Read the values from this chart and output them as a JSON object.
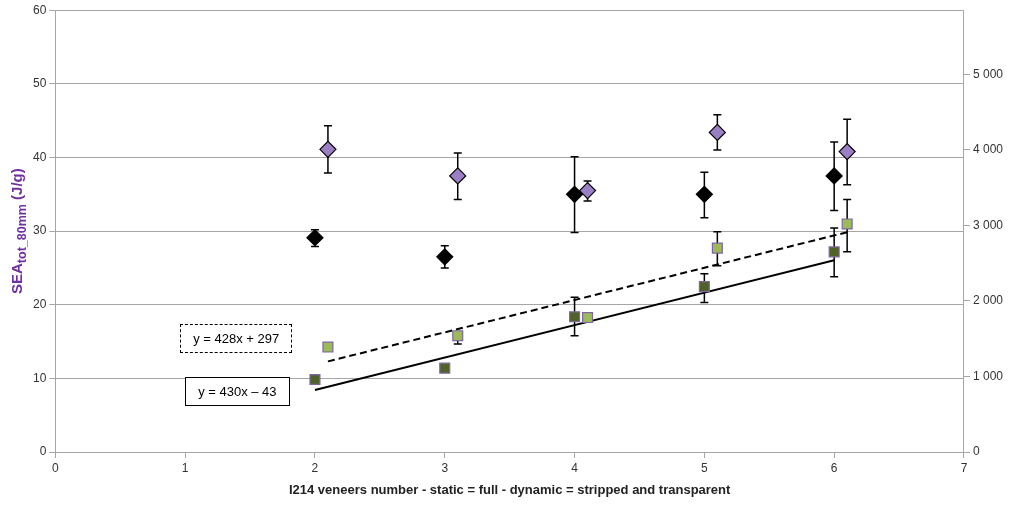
{
  "chart_data": {
    "type": "scatter",
    "xlabel": "I214 veneers number - static = full - dynamic = stripped and transparent",
    "ylabel": "SEA$_{tot_80mm}$ (J/g)",
    "xlim": [
      0,
      7
    ],
    "xticks": [
      0,
      1,
      2,
      3,
      4,
      5,
      6,
      7
    ],
    "ylim": [
      0,
      60
    ],
    "yticks": [
      0,
      10,
      20,
      30,
      40,
      50,
      60
    ],
    "y2lim": [
      0,
      5850
    ],
    "y2ticks": [
      0,
      {
        "value": 1000,
        "label": "1 000"
      },
      {
        "value": 2000,
        "label": "2 000"
      },
      {
        "value": 3000,
        "label": "3 000"
      },
      {
        "value": 4000,
        "label": "4 000"
      },
      {
        "value": 5000,
        "label": "5 000"
      }
    ],
    "grid": "y",
    "legend": false,
    "annotations": [
      "y = 428x + 297",
      "y = 430x – 43"
    ],
    "series": [
      {
        "type": "scatter",
        "marker": "diamond",
        "color": "#000000",
        "x": [
          2,
          3,
          4,
          5,
          6
        ],
        "values": [
          29.1,
          26.5,
          35,
          35,
          37.5
        ],
        "errors": [
          [
            27.9,
            30.2
          ],
          [
            25,
            28
          ],
          [
            29.8,
            40.1
          ],
          [
            31.8,
            38
          ],
          [
            32.8,
            42.1
          ]
        ]
      },
      {
        "type": "scatter",
        "marker": "diamond",
        "color": "#9b7fc4",
        "x": [
          2.1,
          3.1,
          4.1,
          5.1,
          6.1
        ],
        "values": [
          41.1,
          37.5,
          35.5,
          43.4,
          40.8
        ],
        "errors": [
          [
            37.9,
            44.3
          ],
          [
            34.3,
            40.6
          ],
          [
            34.1,
            36.8
          ],
          [
            41,
            45.8
          ],
          [
            36.3,
            45.2
          ]
        ]
      },
      {
        "type": "scatter",
        "marker": "square",
        "axis": "y2",
        "color": "#4f6228",
        "x": [
          2,
          3,
          4,
          5,
          6
        ],
        "values": [
          960,
          1110,
          1790,
          2190,
          2650
        ],
        "errors": [
          null,
          null,
          [
            1540,
            2050
          ],
          [
            1980,
            2360
          ],
          [
            2320,
            2965
          ]
        ]
      },
      {
        "type": "scatter",
        "marker": "square",
        "axis": "y2",
        "color": "#9bbb59",
        "x": [
          2.1,
          3.1,
          4.1,
          5.1,
          6.1
        ],
        "values": [
          1390,
          1540,
          1780,
          2700,
          3020
        ],
        "errors": [
          null,
          [
            1430,
            1560
          ],
          null,
          [
            2465,
            2915
          ],
          [
            2650,
            3345
          ]
        ]
      },
      {
        "type": "line",
        "marker": "none",
        "line_style": "dashed",
        "axis": "y2",
        "color": "#000000",
        "x": [
          2.1,
          6.1
        ],
        "values": [
          1200,
          2910
        ]
      },
      {
        "type": "line",
        "marker": "none",
        "line_style": "solid",
        "axis": "y2",
        "color": "#000000",
        "x": [
          2,
          6
        ],
        "values": [
          820,
          2540
        ]
      }
    ]
  }
}
